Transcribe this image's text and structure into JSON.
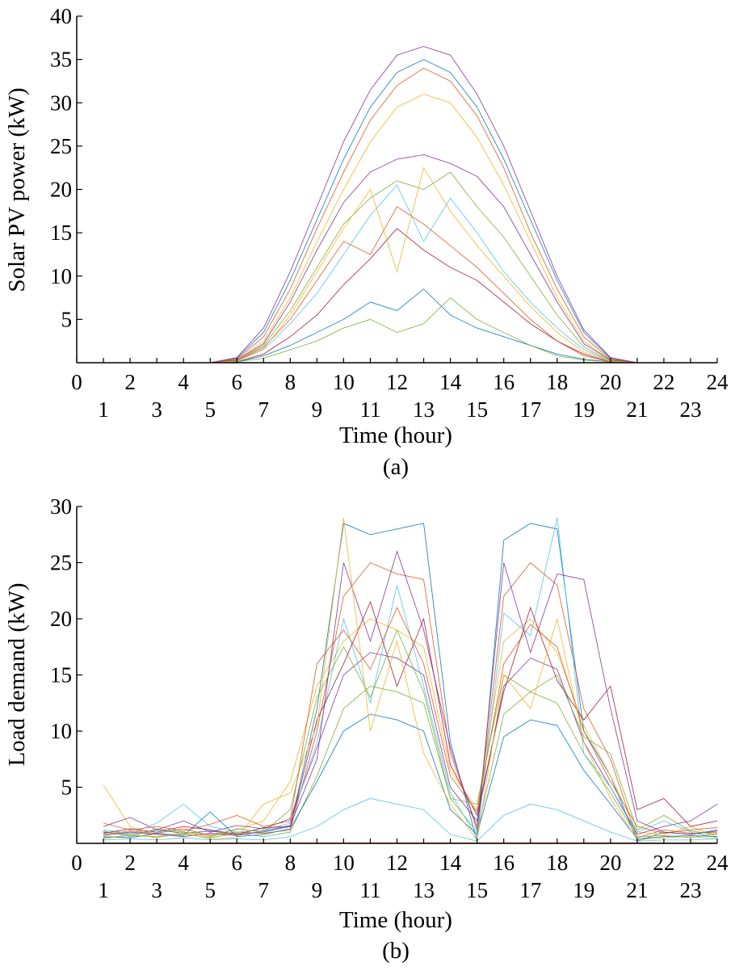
{
  "chart_data": [
    {
      "id": "a",
      "type": "line",
      "panel_label": "(a)",
      "title": "",
      "xlabel": "Time (hour)",
      "ylabel": "Solar PV power (kW)",
      "xlim": [
        0,
        24
      ],
      "ylim": [
        0,
        40
      ],
      "xticks_top": [
        "0",
        "2",
        "4",
        "6",
        "8",
        "10",
        "12",
        "14",
        "16",
        "18",
        "20",
        "22",
        "24"
      ],
      "xticks_bottom": [
        "1",
        "3",
        "5",
        "7",
        "9",
        "11",
        "13",
        "15",
        "17",
        "19",
        "21",
        "23"
      ],
      "yticks": [
        "5",
        "10",
        "15",
        "20",
        "25",
        "30",
        "35",
        "40"
      ],
      "grid": false,
      "legend": "none",
      "x": [
        0,
        1,
        2,
        3,
        4,
        5,
        6,
        7,
        8,
        9,
        10,
        11,
        12,
        13,
        14,
        15,
        16,
        17,
        18,
        19,
        20,
        21,
        22,
        23,
        24
      ],
      "series": [
        {
          "color": "#0072BD",
          "values": [
            0,
            0,
            0,
            0,
            0,
            0,
            0.5,
            3.5,
            9.5,
            16.5,
            23.5,
            29.5,
            33.5,
            35.0,
            33.5,
            29.5,
            23.5,
            16.5,
            9.5,
            3.5,
            0.5,
            0,
            0,
            0,
            0
          ]
        },
        {
          "color": "#D95319",
          "values": [
            0,
            0,
            0,
            0,
            0,
            0,
            0.4,
            3.0,
            8.5,
            15.5,
            22.0,
            28.0,
            32.0,
            34.0,
            32.5,
            28.5,
            22.5,
            15.0,
            8.5,
            3.0,
            0.4,
            0,
            0,
            0,
            0
          ]
        },
        {
          "color": "#EDB120",
          "values": [
            0,
            0,
            0,
            0,
            0,
            0,
            0.3,
            2.5,
            7.5,
            14.0,
            20.0,
            25.5,
            29.5,
            31.0,
            30.0,
            26.0,
            20.5,
            14.0,
            7.5,
            2.5,
            0.3,
            0,
            0,
            0,
            0
          ]
        },
        {
          "color": "#7E2F8E",
          "values": [
            0,
            0,
            0,
            0,
            0,
            0,
            0.3,
            2.2,
            7.0,
            13.0,
            18.5,
            22.0,
            23.5,
            24.0,
            23.0,
            21.5,
            18.0,
            12.5,
            7.0,
            2.2,
            0.3,
            0,
            0,
            0,
            0
          ]
        },
        {
          "color": "#77AC30",
          "values": [
            0,
            0,
            0,
            0,
            0,
            0,
            0.2,
            2.0,
            6.0,
            11.0,
            16.0,
            19.0,
            21.0,
            20.0,
            22.0,
            18.0,
            14.5,
            10.0,
            5.5,
            1.8,
            0.2,
            0,
            0,
            0,
            0
          ]
        },
        {
          "color": "#4DBEEE",
          "values": [
            0,
            0,
            0,
            0,
            0,
            0,
            0.2,
            1.5,
            4.5,
            8.0,
            12.5,
            17.0,
            20.5,
            14.0,
            19.0,
            15.0,
            10.5,
            7.0,
            4.0,
            1.5,
            0.2,
            0,
            0,
            0,
            0
          ]
        },
        {
          "color": "#A2142F",
          "values": [
            0,
            0,
            0,
            0,
            0,
            0,
            0.1,
            1.0,
            3.0,
            5.5,
            9.0,
            12.0,
            15.5,
            13.0,
            11.0,
            9.5,
            7.0,
            4.5,
            2.5,
            1.0,
            0.1,
            0,
            0,
            0,
            0
          ]
        },
        {
          "color": "#0072BD",
          "values": [
            0,
            0,
            0,
            0,
            0,
            0,
            0.1,
            0.8,
            2.0,
            3.5,
            5.0,
            7.0,
            6.0,
            8.5,
            5.5,
            4.0,
            3.0,
            2.0,
            1.0,
            0.4,
            0.1,
            0,
            0,
            0,
            0
          ]
        },
        {
          "color": "#D95319",
          "values": [
            0,
            0,
            0,
            0,
            0,
            0,
            0.2,
            1.8,
            5.0,
            9.5,
            14.0,
            12.5,
            18.0,
            16.0,
            13.5,
            11.0,
            8.0,
            5.0,
            2.5,
            0.8,
            0.1,
            0,
            0,
            0,
            0
          ]
        },
        {
          "color": "#7E2F8E",
          "values": [
            0,
            0,
            0,
            0,
            0,
            0,
            0.6,
            4.0,
            10.5,
            18.0,
            25.5,
            31.5,
            35.5,
            36.5,
            35.5,
            31.0,
            25.0,
            17.5,
            10.0,
            3.8,
            0.6,
            0,
            0,
            0,
            0
          ]
        },
        {
          "color": "#77AC30",
          "values": [
            0,
            0,
            0,
            0,
            0,
            0,
            0.1,
            0.5,
            1.5,
            2.5,
            4.0,
            5.0,
            3.5,
            4.5,
            7.5,
            5.0,
            3.5,
            2.0,
            0.8,
            0.3,
            0.1,
            0,
            0,
            0,
            0
          ]
        },
        {
          "color": "#EDB120",
          "values": [
            0,
            0,
            0,
            0,
            0,
            0,
            0.2,
            1.6,
            5.5,
            10.5,
            15.5,
            20.0,
            10.5,
            22.5,
            17.5,
            13.5,
            10.0,
            6.5,
            3.5,
            1.2,
            0.2,
            0,
            0,
            0,
            0
          ]
        }
      ]
    },
    {
      "id": "b",
      "type": "line",
      "panel_label": "(b)",
      "title": "",
      "xlabel": "Time (hour)",
      "ylabel": "Load demand (kW)",
      "xlim": [
        0,
        24
      ],
      "ylim": [
        0,
        30
      ],
      "xticks_top": [
        "0",
        "2",
        "4",
        "6",
        "8",
        "10",
        "12",
        "14",
        "16",
        "18",
        "20",
        "22",
        "24"
      ],
      "xticks_bottom": [
        "1",
        "3",
        "5",
        "7",
        "9",
        "11",
        "13",
        "15",
        "17",
        "19",
        "21",
        "23"
      ],
      "yticks": [
        "5",
        "10",
        "15",
        "20",
        "25",
        "30"
      ],
      "grid": false,
      "legend": "none",
      "x": [
        1,
        2,
        3,
        4,
        5,
        6,
        7,
        8,
        9,
        10,
        11,
        12,
        13,
        14,
        15,
        16,
        17,
        18,
        19,
        20,
        21,
        22,
        23,
        24
      ],
      "series": [
        {
          "color": "#0072BD",
          "values": [
            1.0,
            0.8,
            1.2,
            0.9,
            1.1,
            0.8,
            1.0,
            1.5,
            12.0,
            28.5,
            27.5,
            28.0,
            28.5,
            9.0,
            0.2,
            27.0,
            28.5,
            28.0,
            10.0,
            6.0,
            0.2,
            1.0,
            0.8,
            1.2
          ]
        },
        {
          "color": "#D95319",
          "values": [
            0.8,
            1.1,
            0.9,
            1.3,
            0.7,
            1.0,
            0.9,
            1.2,
            10.0,
            22.0,
            25.0,
            24.0,
            23.5,
            8.0,
            1.5,
            22.0,
            25.0,
            23.0,
            12.0,
            7.5,
            0.5,
            1.2,
            0.9,
            1.0
          ]
        },
        {
          "color": "#EDB120",
          "values": [
            5.2,
            1.5,
            0.5,
            1.0,
            0.8,
            1.2,
            2.0,
            5.5,
            14.0,
            18.0,
            20.0,
            19.0,
            17.5,
            6.5,
            3.0,
            18.0,
            20.0,
            17.0,
            10.5,
            6.0,
            1.0,
            0.8,
            1.5,
            0.6
          ]
        },
        {
          "color": "#7E2F8E",
          "values": [
            1.5,
            2.3,
            1.2,
            2.0,
            1.0,
            1.6,
            1.3,
            2.2,
            8.5,
            15.0,
            17.0,
            16.5,
            15.0,
            5.0,
            2.0,
            14.0,
            16.5,
            15.5,
            9.0,
            5.0,
            0.8,
            1.5,
            2.0,
            3.5
          ]
        },
        {
          "color": "#77AC30",
          "values": [
            0.5,
            0.7,
            0.6,
            0.8,
            0.5,
            0.9,
            0.6,
            1.0,
            6.0,
            12.0,
            14.0,
            13.5,
            12.5,
            4.0,
            1.0,
            11.5,
            13.5,
            12.5,
            8.0,
            4.5,
            0.6,
            0.7,
            0.5,
            0.9
          ]
        },
        {
          "color": "#4DBEEE",
          "values": [
            1.2,
            0.9,
            1.8,
            3.5,
            1.5,
            1.0,
            1.2,
            1.8,
            9.0,
            20.0,
            12.5,
            23.0,
            14.0,
            4.5,
            0.5,
            20.5,
            18.5,
            29.0,
            8.0,
            5.0,
            1.0,
            2.0,
            1.0,
            0.5
          ]
        },
        {
          "color": "#A2142F",
          "values": [
            0.9,
            1.3,
            1.0,
            1.5,
            1.2,
            0.8,
            1.4,
            1.5,
            11.0,
            16.0,
            21.5,
            14.0,
            20.0,
            7.0,
            2.5,
            13.5,
            21.0,
            14.5,
            11.0,
            14.0,
            3.0,
            4.0,
            1.5,
            2.0
          ]
        },
        {
          "color": "#0072BD",
          "values": [
            0.6,
            0.5,
            0.9,
            0.7,
            2.8,
            0.6,
            0.8,
            1.3,
            5.5,
            10.0,
            11.5,
            11.0,
            10.0,
            3.0,
            0.8,
            9.5,
            11.0,
            10.5,
            6.5,
            3.5,
            0.4,
            0.6,
            0.7,
            0.6
          ]
        },
        {
          "color": "#D95319",
          "values": [
            1.8,
            1.2,
            1.5,
            1.1,
            1.7,
            2.5,
            1.5,
            2.0,
            16.0,
            19.0,
            15.5,
            21.0,
            16.0,
            6.0,
            2.8,
            16.0,
            19.5,
            17.5,
            10.0,
            5.5,
            1.5,
            0.9,
            1.2,
            1.4
          ]
        },
        {
          "color": "#7E2F8E",
          "values": [
            0.7,
            1.0,
            0.8,
            0.6,
            0.9,
            0.7,
            1.1,
            1.6,
            7.5,
            25.0,
            18.0,
            26.0,
            19.0,
            8.5,
            1.2,
            25.0,
            17.0,
            24.0,
            23.5,
            12.0,
            2.0,
            1.0,
            0.8,
            1.1
          ]
        },
        {
          "color": "#77AC30",
          "values": [
            1.1,
            0.6,
            1.3,
            1.0,
            0.6,
            1.3,
            1.0,
            3.0,
            13.0,
            17.5,
            13.0,
            19.0,
            13.5,
            4.0,
            3.5,
            15.0,
            13.5,
            15.0,
            9.5,
            8.0,
            1.2,
            2.5,
            1.1,
            0.8
          ]
        },
        {
          "color": "#EDB120",
          "values": [
            0.4,
            0.8,
            0.5,
            0.9,
            0.4,
            0.5,
            3.5,
            4.5,
            10.5,
            29.0,
            10.0,
            18.0,
            8.0,
            3.5,
            0.3,
            15.0,
            12.0,
            20.0,
            9.0,
            4.0,
            0.3,
            0.5,
            0.6,
            0.4
          ]
        },
        {
          "color": "#4DBEEE",
          "values": [
            0.3,
            0.4,
            0.3,
            0.5,
            0.3,
            0.4,
            0.3,
            0.6,
            1.5,
            3.0,
            4.0,
            3.5,
            3.0,
            0.8,
            0.2,
            2.5,
            3.5,
            3.0,
            2.0,
            1.0,
            0.2,
            0.3,
            0.3,
            0.4
          ]
        },
        {
          "color": "#D95319",
          "values": [
            0.05,
            0.05,
            0.05,
            0.05,
            0.05,
            0.05,
            0.05,
            0.05,
            0.05,
            0.05,
            0.05,
            0.05,
            0.05,
            0.05,
            0.05,
            0.05,
            0.05,
            0.05,
            0.05,
            0.05,
            0.05,
            0.05,
            0.05,
            0.05
          ]
        }
      ]
    }
  ]
}
